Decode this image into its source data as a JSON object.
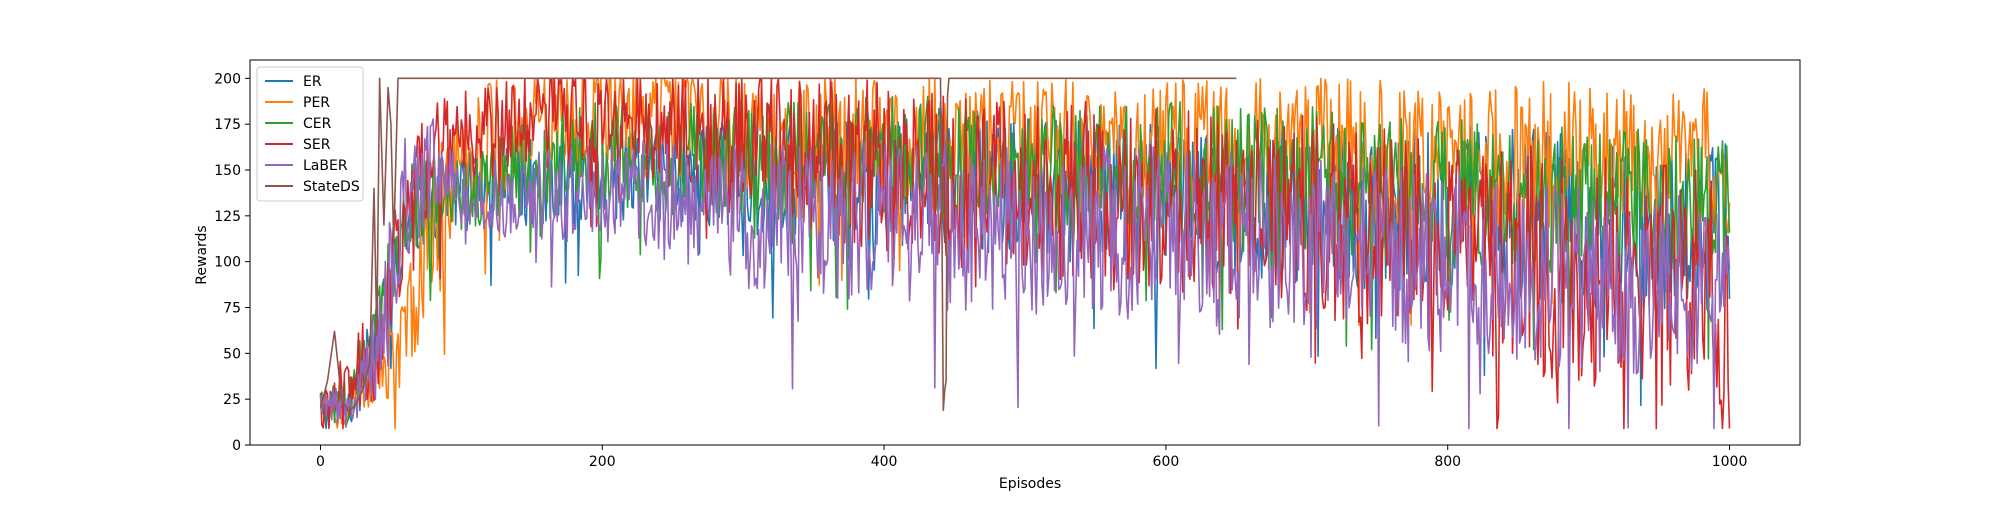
{
  "chart_data": {
    "type": "line",
    "xlabel": "Episodes",
    "ylabel": "Rewards",
    "xlim": [
      -50,
      1050
    ],
    "ylim": [
      0,
      210
    ],
    "xticks": [
      0,
      200,
      400,
      600,
      800,
      1000
    ],
    "yticks": [
      0,
      25,
      50,
      75,
      100,
      125,
      150,
      175,
      200
    ],
    "grid": false,
    "legend_position": "top-left",
    "series": [
      {
        "name": "ER",
        "color": "#1f77b4",
        "x": [
          0,
          20,
          40,
          60,
          80,
          100,
          150,
          200,
          250,
          300,
          350,
          400,
          450,
          500,
          550,
          600,
          650,
          700,
          750,
          800,
          850,
          900,
          950,
          1000
        ],
        "y_mean": [
          20,
          22,
          60,
          120,
          135,
          140,
          145,
          150,
          148,
          145,
          145,
          145,
          145,
          140,
          138,
          135,
          132,
          130,
          130,
          128,
          125,
          122,
          120,
          118
        ],
        "y_amp": [
          5,
          8,
          12,
          16,
          15,
          15,
          16,
          17,
          18,
          20,
          22,
          22,
          25,
          25,
          26,
          26,
          28,
          28,
          28,
          30,
          30,
          30,
          30,
          30
        ]
      },
      {
        "name": "PER",
        "color": "#ff7f0e",
        "x": [
          0,
          20,
          40,
          60,
          80,
          100,
          150,
          200,
          250,
          300,
          350,
          400,
          450,
          500,
          550,
          600,
          650,
          700,
          750,
          800,
          850,
          900,
          950,
          1000
        ],
        "y_mean": [
          20,
          20,
          35,
          60,
          120,
          160,
          178,
          182,
          178,
          172,
          170,
          168,
          165,
          165,
          165,
          165,
          162,
          160,
          160,
          158,
          158,
          158,
          158,
          155
        ],
        "y_amp": [
          8,
          8,
          10,
          18,
          25,
          22,
          20,
          18,
          20,
          22,
          22,
          22,
          22,
          22,
          22,
          22,
          24,
          25,
          25,
          25,
          26,
          26,
          26,
          26
        ]
      },
      {
        "name": "CER",
        "color": "#2ca02c",
        "x": [
          0,
          20,
          40,
          60,
          80,
          100,
          150,
          200,
          250,
          300,
          350,
          400,
          450,
          500,
          550,
          600,
          650,
          700,
          750,
          800,
          850,
          900,
          950,
          1000
        ],
        "y_mean": [
          20,
          25,
          65,
          130,
          140,
          140,
          150,
          160,
          158,
          155,
          155,
          155,
          155,
          150,
          150,
          150,
          145,
          145,
          140,
          138,
          135,
          132,
          130,
          128
        ],
        "y_amp": [
          6,
          8,
          14,
          18,
          16,
          15,
          18,
          20,
          20,
          20,
          22,
          22,
          22,
          22,
          22,
          24,
          25,
          25,
          25,
          26,
          26,
          26,
          26,
          26
        ]
      },
      {
        "name": "SER",
        "color": "#d62728",
        "x": [
          0,
          20,
          40,
          60,
          80,
          100,
          150,
          200,
          250,
          300,
          350,
          400,
          450,
          500,
          550,
          600,
          650,
          700,
          750,
          800,
          850,
          900,
          950,
          1000
        ],
        "y_mean": [
          20,
          28,
          55,
          130,
          160,
          170,
          178,
          180,
          175,
          165,
          158,
          150,
          145,
          140,
          138,
          135,
          130,
          125,
          118,
          110,
          100,
          92,
          88,
          80
        ],
        "y_amp": [
          8,
          15,
          18,
          25,
          20,
          18,
          18,
          18,
          22,
          26,
          28,
          30,
          30,
          30,
          32,
          32,
          34,
          34,
          36,
          38,
          40,
          42,
          42,
          42
        ]
      },
      {
        "name": "LaBER",
        "color": "#9467bd",
        "x": [
          0,
          20,
          40,
          60,
          80,
          100,
          150,
          200,
          250,
          300,
          350,
          400,
          450,
          500,
          550,
          600,
          650,
          700,
          750,
          800,
          850,
          900,
          950,
          1000
        ],
        "y_mean": [
          20,
          22,
          50,
          140,
          150,
          135,
          135,
          140,
          135,
          125,
          125,
          120,
          118,
          118,
          118,
          115,
          112,
          110,
          105,
          100,
          95,
          90,
          88,
          85
        ],
        "y_amp": [
          6,
          8,
          18,
          25,
          20,
          16,
          16,
          18,
          22,
          25,
          26,
          28,
          28,
          28,
          30,
          30,
          30,
          30,
          30,
          32,
          32,
          32,
          32,
          32
        ]
      },
      {
        "name": "StateDS",
        "color": "#8c564b",
        "x": [
          0,
          5,
          10,
          15,
          20,
          25,
          30,
          35,
          38,
          40,
          42,
          45,
          48,
          50,
          52,
          55,
          60,
          65,
          440,
          441,
          442,
          443,
          444,
          445,
          446,
          447,
          448,
          450,
          452,
          455,
          460,
          650
        ],
        "y": [
          20,
          35,
          62,
          25,
          18,
          22,
          30,
          45,
          140,
          60,
          200,
          120,
          195,
          175,
          110,
          200,
          200,
          200,
          200,
          120,
          19,
          30,
          35,
          190,
          200,
          200,
          200,
          200,
          200,
          200,
          200,
          200
        ]
      }
    ]
  }
}
